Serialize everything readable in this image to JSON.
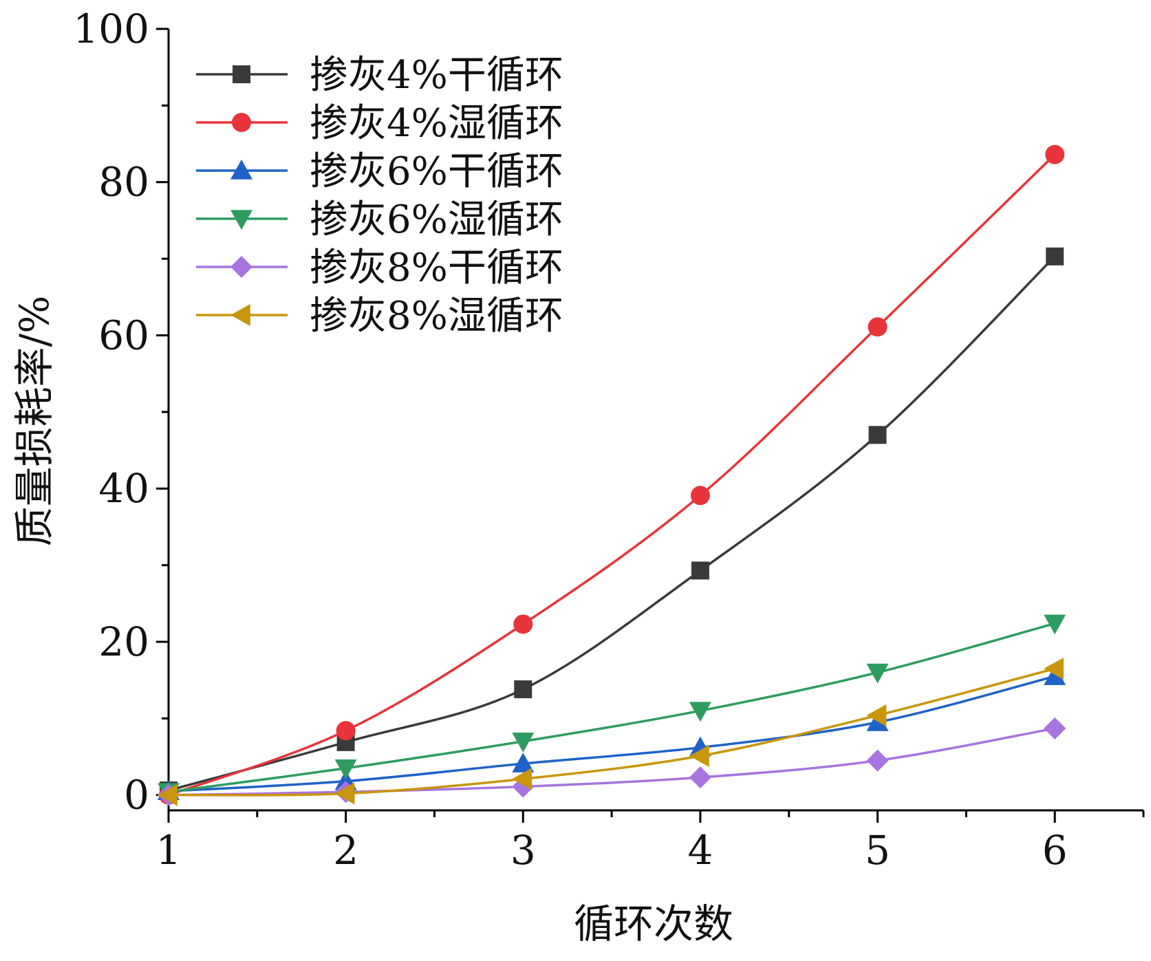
{
  "chart_data": {
    "type": "line",
    "title": "",
    "xlabel": "循环次数",
    "ylabel": "质量损耗率/%",
    "x": [
      1,
      2,
      3,
      4,
      5,
      6
    ],
    "xlim": [
      1,
      6.5
    ],
    "ylim": [
      -2,
      100
    ],
    "xticks": [
      1,
      2,
      3,
      4,
      5,
      6
    ],
    "yticks": [
      0,
      20,
      40,
      60,
      80,
      100
    ],
    "grid": false,
    "legend_position": "top-left",
    "series": [
      {
        "name": "掺灰4%干循环",
        "color": "#3a3a3a",
        "marker": "square",
        "values": [
          0.6,
          6.9,
          13.8,
          29.3,
          47.0,
          70.3
        ]
      },
      {
        "name": "掺灰4%湿循环",
        "color": "#e8343a",
        "marker": "circle",
        "values": [
          0.0,
          8.4,
          22.3,
          39.1,
          61.1,
          83.6
        ]
      },
      {
        "name": "掺灰6%干循环",
        "color": "#1f62c8",
        "marker": "triangle-up",
        "values": [
          0.5,
          1.8,
          4.1,
          6.2,
          9.5,
          15.5
        ]
      },
      {
        "name": "掺灰6%湿循环",
        "color": "#2e9c5f",
        "marker": "triangle-down",
        "values": [
          0.4,
          3.5,
          7.0,
          11.0,
          16.0,
          22.4
        ]
      },
      {
        "name": "掺灰8%干循环",
        "color": "#a774e0",
        "marker": "diamond",
        "values": [
          0.0,
          0.4,
          1.1,
          2.3,
          4.5,
          8.7
        ]
      },
      {
        "name": "掺灰8%湿循环",
        "color": "#c8950c",
        "marker": "triangle-left",
        "values": [
          0.0,
          0.2,
          2.1,
          5.1,
          10.4,
          16.5
        ]
      }
    ]
  }
}
